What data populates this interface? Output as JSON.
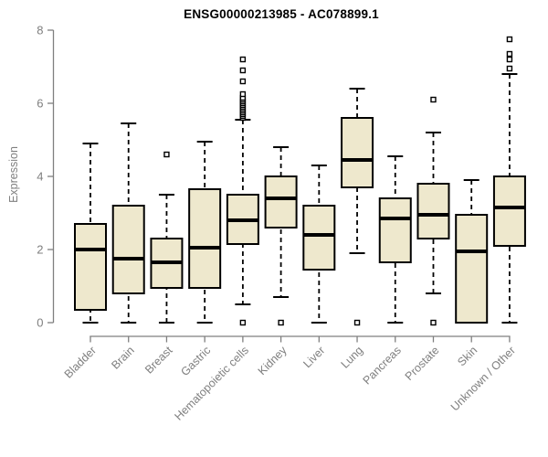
{
  "chart_data": {
    "type": "boxplot",
    "title": "ENSG00000213985 - AC078899.1",
    "xlabel": "",
    "ylabel": "Expression",
    "ylim": [
      0,
      8
    ],
    "yticks": [
      0,
      2,
      4,
      6,
      8
    ],
    "grid": false,
    "legend": "none",
    "categories": [
      "Bladder",
      "Brain",
      "Breast",
      "Gastric",
      "Hematopoietic cells",
      "Kidney",
      "Liver",
      "Lung",
      "Pancreas",
      "Prostate",
      "Skin",
      "Unknown / Other"
    ],
    "series": [
      {
        "category": "Bladder",
        "whisker_low": 0.0,
        "q1": 0.35,
        "median": 2.0,
        "q3": 2.7,
        "whisker_high": 4.9,
        "outliers": []
      },
      {
        "category": "Brain",
        "whisker_low": 0.0,
        "q1": 0.8,
        "median": 1.75,
        "q3": 3.2,
        "whisker_high": 5.45,
        "outliers": []
      },
      {
        "category": "Breast",
        "whisker_low": 0.0,
        "q1": 0.95,
        "median": 1.65,
        "q3": 2.3,
        "whisker_high": 3.5,
        "outliers": [
          4.6
        ]
      },
      {
        "category": "Gastric",
        "whisker_low": 0.0,
        "q1": 0.95,
        "median": 2.05,
        "q3": 3.65,
        "whisker_high": 4.95,
        "outliers": []
      },
      {
        "category": "Hematopoietic cells",
        "whisker_low": 0.5,
        "q1": 2.15,
        "median": 2.8,
        "q3": 3.5,
        "whisker_high": 5.55,
        "outliers": [
          0.0,
          5.6,
          5.65,
          5.7,
          5.75,
          5.8,
          5.85,
          5.9,
          5.95,
          6.0,
          6.05,
          6.1,
          6.15,
          6.25,
          6.6,
          6.9,
          7.2
        ]
      },
      {
        "category": "Kidney",
        "whisker_low": 0.7,
        "q1": 2.6,
        "median": 3.4,
        "q3": 4.0,
        "whisker_high": 4.8,
        "outliers": [
          0.0
        ]
      },
      {
        "category": "Liver",
        "whisker_low": 0.0,
        "q1": 1.45,
        "median": 2.4,
        "q3": 3.2,
        "whisker_high": 4.3,
        "outliers": []
      },
      {
        "category": "Lung",
        "whisker_low": 1.9,
        "q1": 3.7,
        "median": 4.45,
        "q3": 5.6,
        "whisker_high": 6.4,
        "outliers": [
          0.0
        ]
      },
      {
        "category": "Pancreas",
        "whisker_low": 0.0,
        "q1": 1.65,
        "median": 2.85,
        "q3": 3.4,
        "whisker_high": 4.55,
        "outliers": []
      },
      {
        "category": "Prostate",
        "whisker_low": 0.8,
        "q1": 2.3,
        "median": 2.95,
        "q3": 3.8,
        "whisker_high": 5.2,
        "outliers": [
          0.0,
          6.1
        ]
      },
      {
        "category": "Skin",
        "whisker_low": 0.0,
        "q1": 0.0,
        "median": 1.95,
        "q3": 2.95,
        "whisker_high": 3.9,
        "outliers": []
      },
      {
        "category": "Unknown / Other",
        "whisker_low": 0.0,
        "q1": 2.1,
        "median": 3.15,
        "q3": 4.0,
        "whisker_high": 6.8,
        "outliers": [
          6.95,
          7.2,
          7.35,
          7.75
        ]
      }
    ]
  },
  "colors": {
    "background": "#FFFFFF",
    "box_fill": "#EEE8CD",
    "box_stroke": "#000000",
    "median": "#000000",
    "whisker": "#000000",
    "outlier_fill": "#FFFFFF",
    "outlier_stroke": "#000000",
    "axis": "#7F7F7F",
    "tick_label": "#7F7F7F",
    "title": "#000000"
  }
}
